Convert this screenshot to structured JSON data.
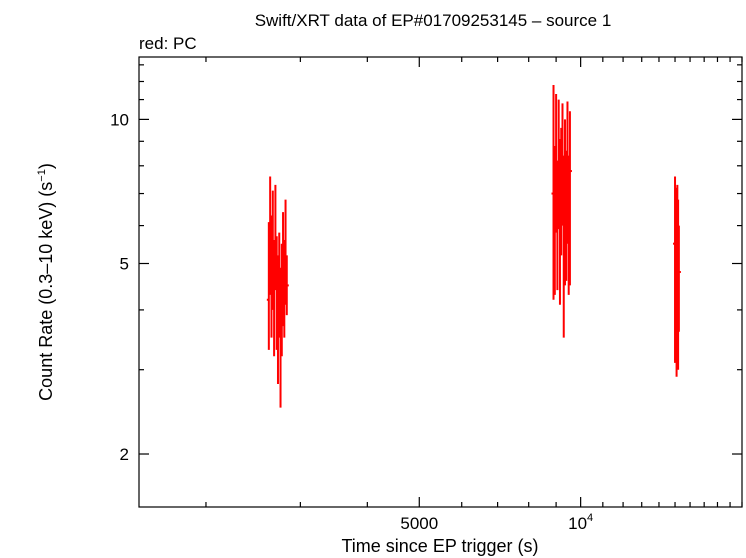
{
  "chart_data": {
    "type": "scatter",
    "title": "Swift/XRT data of EP#01709253145 – source 1",
    "subtitle": "red: PC",
    "xlabel": "Time since EP trigger (s)",
    "ylabel_main": "Count Rate (0.3–10 keV) (s",
    "ylabel_sup": "−1",
    "ylabel_close": ")",
    "x_scale": "log",
    "y_scale": "log",
    "xlim": [
      1500,
      20000
    ],
    "ylim": [
      1.55,
      13.5
    ],
    "x_tick_labels": [
      {
        "value": 5000,
        "text": "5000"
      },
      {
        "value": 10000,
        "base": "10",
        "exp": "4"
      }
    ],
    "y_tick_labels": [
      {
        "value": 2,
        "text": "2"
      },
      {
        "value": 5,
        "text": "5"
      },
      {
        "value": 10,
        "text": "10"
      }
    ],
    "series": [
      {
        "color": "#ff0000",
        "points": [
          {
            "x": 2620,
            "y": 4.2,
            "lo": 3.3,
            "hi": 6.1
          },
          {
            "x": 2635,
            "y": 5.6,
            "lo": 4.3,
            "hi": 7.6
          },
          {
            "x": 2650,
            "y": 4.6,
            "lo": 3.5,
            "hi": 6.3
          },
          {
            "x": 2665,
            "y": 5.2,
            "lo": 4.0,
            "hi": 7.1
          },
          {
            "x": 2680,
            "y": 4.1,
            "lo": 3.2,
            "hi": 5.6
          },
          {
            "x": 2695,
            "y": 5.8,
            "lo": 4.4,
            "hi": 7.3
          },
          {
            "x": 2710,
            "y": 4.3,
            "lo": 3.3,
            "hi": 5.7
          },
          {
            "x": 2725,
            "y": 3.9,
            "lo": 2.8,
            "hi": 5.2
          },
          {
            "x": 2740,
            "y": 4.5,
            "lo": 3.5,
            "hi": 5.8
          },
          {
            "x": 2755,
            "y": 3.6,
            "lo": 2.5,
            "hi": 4.9
          },
          {
            "x": 2770,
            "y": 4.2,
            "lo": 3.2,
            "hi": 5.5
          },
          {
            "x": 2785,
            "y": 4.9,
            "lo": 3.7,
            "hi": 6.4
          },
          {
            "x": 2800,
            "y": 4.4,
            "lo": 3.5,
            "hi": 5.6
          },
          {
            "x": 2815,
            "y": 5.3,
            "lo": 4.1,
            "hi": 6.8
          },
          {
            "x": 2830,
            "y": 4.5,
            "lo": 3.9,
            "hi": 5.2
          },
          {
            "x": 8900,
            "y": 7.0,
            "lo": 4.2,
            "hi": 11.8
          },
          {
            "x": 8950,
            "y": 6.1,
            "lo": 4.3,
            "hi": 8.8
          },
          {
            "x": 9000,
            "y": 9.5,
            "lo": 5.8,
            "hi": 11.3
          },
          {
            "x": 9050,
            "y": 6.5,
            "lo": 4.4,
            "hi": 8.2
          },
          {
            "x": 9100,
            "y": 8.6,
            "lo": 5.9,
            "hi": 11.0
          },
          {
            "x": 9150,
            "y": 5.6,
            "lo": 4.1,
            "hi": 9.1
          },
          {
            "x": 9200,
            "y": 7.7,
            "lo": 5.2,
            "hi": 9.6
          },
          {
            "x": 9250,
            "y": 9.2,
            "lo": 6.0,
            "hi": 10.8
          },
          {
            "x": 9300,
            "y": 6.3,
            "lo": 3.5,
            "hi": 8.4
          },
          {
            "x": 9350,
            "y": 8.0,
            "lo": 4.5,
            "hi": 10.0
          },
          {
            "x": 9400,
            "y": 6.9,
            "lo": 4.6,
            "hi": 8.6
          },
          {
            "x": 9450,
            "y": 8.9,
            "lo": 5.5,
            "hi": 10.9
          },
          {
            "x": 9500,
            "y": 6.0,
            "lo": 4.3,
            "hi": 8.4
          },
          {
            "x": 9550,
            "y": 7.8,
            "lo": 4.5,
            "hi": 10.4
          },
          {
            "x": 15000,
            "y": 5.5,
            "lo": 3.1,
            "hi": 7.6
          },
          {
            "x": 15050,
            "y": 5.9,
            "lo": 3.2,
            "hi": 6.6
          },
          {
            "x": 15100,
            "y": 4.5,
            "lo": 2.9,
            "hi": 7.2
          },
          {
            "x": 15150,
            "y": 6.2,
            "lo": 3.2,
            "hi": 7.3
          },
          {
            "x": 15200,
            "y": 5.1,
            "lo": 3.0,
            "hi": 6.8
          },
          {
            "x": 15250,
            "y": 4.8,
            "lo": 3.6,
            "hi": 6.0
          }
        ]
      }
    ]
  }
}
